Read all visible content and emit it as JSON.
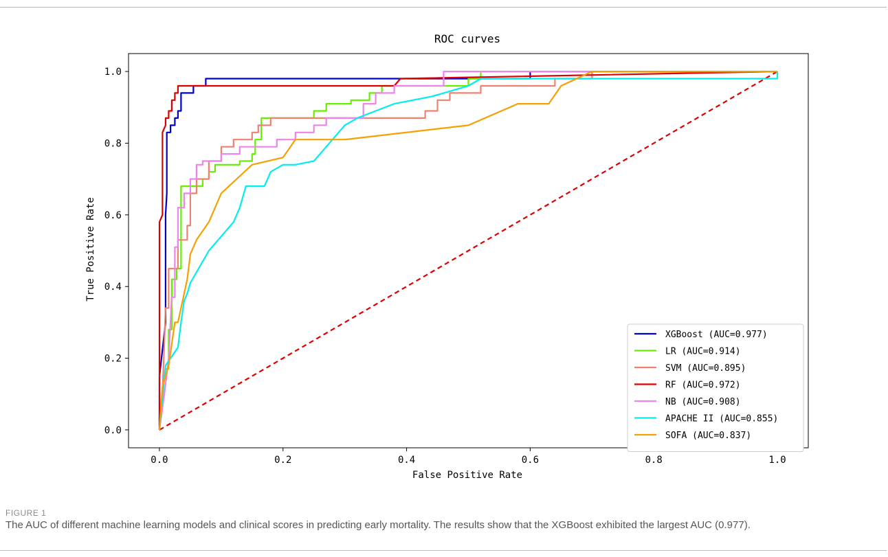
{
  "caption": {
    "label": "FIGURE 1",
    "text": "The AUC of different machine learning models and clinical scores in predicting early mortality. The results show that the XGBoost exhibited the largest AUC (0.977)."
  },
  "chart_data": {
    "type": "line",
    "title": "ROC curves",
    "xlabel": "False Positive Rate",
    "ylabel": "True Positive Rate",
    "xlim": [
      -0.05,
      1.05
    ],
    "ylim": [
      -0.05,
      1.05
    ],
    "xticks": [
      0.0,
      0.2,
      0.4,
      0.6,
      0.8,
      1.0
    ],
    "xtick_labels": [
      "0.0",
      "0.2",
      "0.4",
      "0.6",
      "0.8",
      "1.0"
    ],
    "yticks": [
      0.0,
      0.2,
      0.4,
      0.6,
      0.8,
      1.0
    ],
    "ytick_labels": [
      "0.0",
      "0.2",
      "0.4",
      "0.6",
      "0.8",
      "1.0"
    ],
    "grid": false,
    "legend_position": "lower-right",
    "series": [
      {
        "name": "XGBoost (AUC=0.977)",
        "color": "#0000cc",
        "x": [
          0,
          0,
          0.01,
          0.01,
          0.012,
          0.012,
          0.018,
          0.018,
          0.025,
          0.025,
          0.03,
          0.03,
          0.035,
          0.035,
          0.04,
          0.04,
          0.055,
          0.055,
          0.075,
          0.075,
          0.6,
          0.6,
          1.0
        ],
        "y": [
          0,
          0.15,
          0.3,
          0.6,
          0.66,
          0.83,
          0.83,
          0.85,
          0.85,
          0.87,
          0.87,
          0.89,
          0.89,
          0.94,
          0.94,
          0.94,
          0.94,
          0.96,
          0.96,
          0.98,
          0.98,
          1.0,
          1.0
        ]
      },
      {
        "name": "LR (AUC=0.914)",
        "color": "#66ee00",
        "x": [
          0,
          0.005,
          0.01,
          0.015,
          0.015,
          0.02,
          0.02,
          0.028,
          0.028,
          0.035,
          0.035,
          0.07,
          0.07,
          0.08,
          0.08,
          0.09,
          0.09,
          0.13,
          0.13,
          0.15,
          0.15,
          0.155,
          0.155,
          0.165,
          0.165,
          0.25,
          0.25,
          0.27,
          0.27,
          0.31,
          0.31,
          0.34,
          0.34,
          0.36,
          0.36,
          0.37,
          0.37,
          0.5,
          0.5,
          0.52,
          0.52,
          1.0
        ],
        "y": [
          0,
          0.1,
          0.17,
          0.17,
          0.28,
          0.28,
          0.42,
          0.42,
          0.45,
          0.45,
          0.68,
          0.68,
          0.7,
          0.7,
          0.72,
          0.72,
          0.74,
          0.74,
          0.75,
          0.75,
          0.77,
          0.77,
          0.81,
          0.81,
          0.87,
          0.87,
          0.89,
          0.89,
          0.91,
          0.91,
          0.92,
          0.92,
          0.94,
          0.94,
          0.96,
          0.96,
          0.96,
          0.96,
          0.98,
          0.98,
          1.0,
          1.0
        ]
      },
      {
        "name": "SVM (AUC=0.895)",
        "color": "#f08070",
        "x": [
          0,
          0.005,
          0.01,
          0.015,
          0.015,
          0.03,
          0.03,
          0.045,
          0.045,
          0.05,
          0.05,
          0.06,
          0.06,
          0.08,
          0.08,
          0.1,
          0.1,
          0.12,
          0.12,
          0.15,
          0.15,
          0.16,
          0.16,
          0.18,
          0.18,
          0.2,
          0.2,
          0.43,
          0.43,
          0.45,
          0.45,
          0.47,
          0.47,
          0.52,
          0.52,
          0.64,
          0.64,
          0.7,
          0.7,
          1.0
        ],
        "y": [
          0,
          0.1,
          0.34,
          0.34,
          0.45,
          0.45,
          0.53,
          0.53,
          0.57,
          0.57,
          0.66,
          0.66,
          0.7,
          0.7,
          0.75,
          0.75,
          0.79,
          0.79,
          0.81,
          0.81,
          0.83,
          0.83,
          0.85,
          0.85,
          0.87,
          0.87,
          0.87,
          0.87,
          0.89,
          0.89,
          0.92,
          0.92,
          0.94,
          0.94,
          0.96,
          0.96,
          0.98,
          0.98,
          1.0,
          1.0
        ]
      },
      {
        "name": "RF (AUC=0.972)",
        "color": "#dd0000",
        "x": [
          0,
          0,
          0.005,
          0.005,
          0.01,
          0.01,
          0.015,
          0.015,
          0.02,
          0.02,
          0.025,
          0.025,
          0.03,
          0.03,
          0.035,
          0.035,
          0.38,
          0.39,
          0.39,
          1.0
        ],
        "y": [
          0,
          0.58,
          0.6,
          0.83,
          0.85,
          0.87,
          0.87,
          0.89,
          0.89,
          0.92,
          0.92,
          0.94,
          0.94,
          0.96,
          0.96,
          0.96,
          0.96,
          0.98,
          0.98,
          1.0
        ]
      },
      {
        "name": "NB (AUC=0.908)",
        "color": "#ee82ee",
        "x": [
          0,
          0.008,
          0.015,
          0.02,
          0.025,
          0.025,
          0.03,
          0.03,
          0.04,
          0.04,
          0.05,
          0.05,
          0.06,
          0.06,
          0.07,
          0.07,
          0.1,
          0.1,
          0.13,
          0.13,
          0.17,
          0.17,
          0.19,
          0.19,
          0.22,
          0.22,
          0.25,
          0.25,
          0.27,
          0.27,
          0.33,
          0.33,
          0.35,
          0.35,
          0.38,
          0.38,
          0.46,
          0.46,
          0.7,
          0.7,
          1.0
        ],
        "y": [
          0,
          0.1,
          0.2,
          0.37,
          0.37,
          0.51,
          0.51,
          0.62,
          0.62,
          0.66,
          0.66,
          0.7,
          0.7,
          0.74,
          0.74,
          0.75,
          0.75,
          0.77,
          0.77,
          0.79,
          0.79,
          0.79,
          0.79,
          0.81,
          0.81,
          0.83,
          0.83,
          0.85,
          0.85,
          0.87,
          0.87,
          0.91,
          0.91,
          0.94,
          0.94,
          0.96,
          0.96,
          1.0,
          1.0,
          1.0,
          1.0
        ]
      },
      {
        "name": "APACHE II (AUC=0.855)",
        "color": "#00eeee",
        "x": [
          0,
          0.01,
          0.03,
          0.035,
          0.04,
          0.045,
          0.05,
          0.08,
          0.1,
          0.12,
          0.13,
          0.14,
          0.17,
          0.18,
          0.2,
          0.22,
          0.25,
          0.27,
          0.3,
          0.32,
          0.38,
          0.44,
          0.5,
          0.52,
          0.55,
          0.65,
          0.8,
          1.0,
          1.0
        ],
        "y": [
          0,
          0.18,
          0.23,
          0.3,
          0.36,
          0.38,
          0.41,
          0.5,
          0.54,
          0.58,
          0.62,
          0.68,
          0.68,
          0.72,
          0.74,
          0.74,
          0.75,
          0.79,
          0.85,
          0.87,
          0.91,
          0.93,
          0.96,
          0.98,
          0.98,
          0.98,
          0.98,
          0.98,
          1.0
        ]
      },
      {
        "name": "SOFA (AUC=0.837)",
        "color": "#f5a000",
        "x": [
          0,
          0.005,
          0.015,
          0.025,
          0.03,
          0.035,
          0.045,
          0.05,
          0.06,
          0.08,
          0.1,
          0.15,
          0.2,
          0.22,
          0.3,
          0.5,
          0.58,
          0.63,
          0.65,
          0.7,
          0.75,
          1.0
        ],
        "y": [
          0,
          0.12,
          0.18,
          0.3,
          0.3,
          0.34,
          0.42,
          0.49,
          0.53,
          0.58,
          0.66,
          0.74,
          0.76,
          0.81,
          0.81,
          0.85,
          0.91,
          0.91,
          0.96,
          1.0,
          1.0,
          1.0
        ]
      }
    ],
    "diagonal": {
      "x": [
        0,
        1
      ],
      "y": [
        0,
        1
      ],
      "color": "#dd0000",
      "style": "dashed"
    }
  }
}
